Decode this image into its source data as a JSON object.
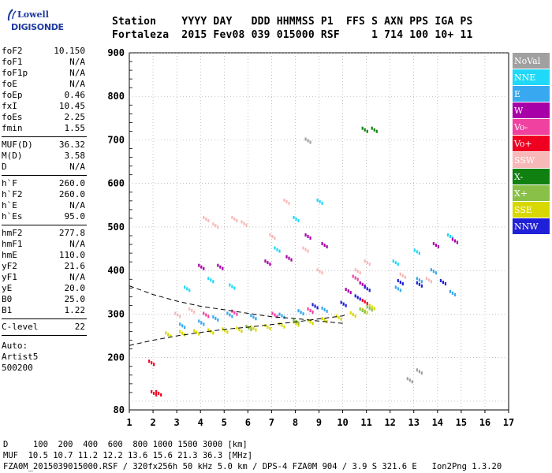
{
  "logo": {
    "line1": "Lowell",
    "line2": "DIGISONDE"
  },
  "header": {
    "line1": "Station    YYYY DAY   DDD HHMMSS P1  FFS S AXN PPS IGA PS",
    "line2": "Fortaleza  2015 Fev08 039 015000 RSF     1 714 100 10+ 11"
  },
  "params": [
    {
      "name": "foF2",
      "value": "10.150"
    },
    {
      "name": "foF1",
      "value": "N/A"
    },
    {
      "name": "foF1p",
      "value": "N/A"
    },
    {
      "name": "foE",
      "value": "N/A"
    },
    {
      "name": "foEp",
      "value": "0.46"
    },
    {
      "name": "fxI",
      "value": "10.45"
    },
    {
      "name": "foEs",
      "value": "2.25"
    },
    {
      "name": "fmin",
      "value": "1.55"
    },
    {
      "sep": true
    },
    {
      "name": "MUF(D)",
      "value": "36.32"
    },
    {
      "name": "M(D)",
      "value": "3.58"
    },
    {
      "name": "D",
      "value": "N/A"
    },
    {
      "sep": true
    },
    {
      "name": "h`F",
      "value": "260.0"
    },
    {
      "name": "h`F2",
      "value": "260.0"
    },
    {
      "name": "h`E",
      "value": "N/A"
    },
    {
      "name": "h`Es",
      "value": "95.0"
    },
    {
      "sep": true
    },
    {
      "name": "hmF2",
      "value": "277.8"
    },
    {
      "name": "hmF1",
      "value": "N/A"
    },
    {
      "name": "hmE",
      "value": "110.0"
    },
    {
      "name": "yF2",
      "value": "21.6"
    },
    {
      "name": "yF1",
      "value": "N/A"
    },
    {
      "name": "yE",
      "value": "20.0"
    },
    {
      "name": "B0",
      "value": "25.0"
    },
    {
      "name": "B1",
      "value": "1.22"
    },
    {
      "sep": true
    },
    {
      "name": "C-level",
      "value": "22"
    },
    {
      "sep": true
    }
  ],
  "auto": {
    "line1": "Auto:",
    "line2": "Artist5",
    "line3": "500200"
  },
  "legend": [
    {
      "label": "NoVal",
      "color": "#a0a0a0"
    },
    {
      "label": "NNE",
      "color": "#20d8f8"
    },
    {
      "label": "E",
      "color": "#38a8f0"
    },
    {
      "label": "W",
      "color": "#a800a8"
    },
    {
      "label": "Vo-",
      "color": "#f040a0"
    },
    {
      "label": "Vo+",
      "color": "#f00020"
    },
    {
      "label": "SSW",
      "color": "#f8b8b8"
    },
    {
      "label": "X-",
      "color": "#108010"
    },
    {
      "label": "X+",
      "color": "#88c048"
    },
    {
      "label": "SSE",
      "color": "#d8d800"
    },
    {
      "label": "NNW",
      "color": "#2020d8"
    }
  ],
  "bottom": {
    "line1": "D     100  200  400  600  800 1000 1500 3000 [km]",
    "line2": "MUF  10.5 10.7 11.2 12.2 13.6 15.6 21.3 36.3 [MHz]",
    "line3": "FZA0M_2015039015000.RSF / 320fx256h 50 kHz 5.0 km / DPS-4 FZA0M 904 / 3.9 S 321.6 E   Ion2Png 1.3.20"
  },
  "chart_data": {
    "type": "scatter",
    "title": "",
    "xlabel": "",
    "ylabel": "",
    "xlim": [
      1,
      17
    ],
    "ylim": [
      80,
      900
    ],
    "x_ticks": [
      1,
      2,
      3,
      4,
      5,
      6,
      7,
      8,
      9,
      10,
      11,
      12,
      13,
      14,
      15,
      16,
      17
    ],
    "y_ticks": [
      100,
      200,
      300,
      400,
      500,
      600,
      700,
      800,
      900
    ],
    "y_tick_labels_shown": [
      80,
      200,
      300,
      400,
      500,
      600,
      700,
      800,
      900
    ],
    "grid": true,
    "legend_position": "right",
    "series": [
      {
        "name": "SSE",
        "color": "#d8d800",
        "points": [
          [
            2.6,
            255
          ],
          [
            3.2,
            258
          ],
          [
            3.8,
            260
          ],
          [
            4.4,
            262
          ],
          [
            5.0,
            264
          ],
          [
            5.6,
            266
          ],
          [
            6.2,
            269
          ],
          [
            6.8,
            272
          ],
          [
            7.4,
            276
          ],
          [
            8.0,
            280
          ],
          [
            8.6,
            284
          ],
          [
            9.2,
            288
          ],
          [
            9.8,
            294
          ],
          [
            10.4,
            301
          ],
          [
            10.9,
            309
          ],
          [
            11.2,
            318
          ]
        ]
      },
      {
        "name": "E",
        "color": "#38a8f0",
        "points": [
          [
            3.2,
            275
          ],
          [
            4.0,
            282
          ],
          [
            4.6,
            292
          ],
          [
            5.2,
            300
          ],
          [
            6.2,
            295
          ],
          [
            7.4,
            298
          ],
          [
            8.2,
            306
          ],
          [
            9.2,
            312
          ],
          [
            12.3,
            360
          ],
          [
            13.2,
            380
          ],
          [
            13.8,
            400
          ],
          [
            14.6,
            350
          ]
        ]
      },
      {
        "name": "NNE",
        "color": "#20d8f8",
        "points": [
          [
            3.4,
            360
          ],
          [
            4.4,
            380
          ],
          [
            5.3,
            365
          ],
          [
            7.2,
            450
          ],
          [
            8.0,
            520
          ],
          [
            9.0,
            560
          ],
          [
            12.2,
            420
          ],
          [
            13.1,
            445
          ],
          [
            14.5,
            480
          ]
        ]
      },
      {
        "name": "SSW",
        "color": "#f8b8b8",
        "points": [
          [
            3.0,
            300
          ],
          [
            3.6,
            310
          ],
          [
            4.2,
            520
          ],
          [
            4.6,
            505
          ],
          [
            5.4,
            520
          ],
          [
            5.8,
            510
          ],
          [
            7.0,
            480
          ],
          [
            7.6,
            560
          ],
          [
            8.4,
            450
          ],
          [
            9.0,
            400
          ],
          [
            10.6,
            400
          ],
          [
            11.0,
            420
          ],
          [
            12.5,
            390
          ],
          [
            13.6,
            380
          ]
        ]
      },
      {
        "name": "W",
        "color": "#a800a8",
        "points": [
          [
            4.0,
            410
          ],
          [
            4.8,
            410
          ],
          [
            6.8,
            420
          ],
          [
            7.7,
            430
          ],
          [
            8.5,
            480
          ],
          [
            9.2,
            460
          ],
          [
            10.2,
            355
          ],
          [
            10.8,
            370
          ],
          [
            13.9,
            460
          ],
          [
            14.7,
            470
          ]
        ]
      },
      {
        "name": "NNW",
        "color": "#2020d8",
        "points": [
          [
            8.8,
            320
          ],
          [
            10.0,
            325
          ],
          [
            10.6,
            340
          ],
          [
            11.0,
            360
          ],
          [
            12.4,
            375
          ],
          [
            13.2,
            370
          ],
          [
            14.2,
            375
          ]
        ]
      },
      {
        "name": "X+",
        "color": "#88c048",
        "points": [
          [
            6.0,
            270
          ],
          [
            8.0,
            285
          ],
          [
            10.8,
            310
          ],
          [
            11.1,
            315
          ]
        ]
      },
      {
        "name": "Vo-",
        "color": "#f040a0",
        "points": [
          [
            4.2,
            300
          ],
          [
            5.4,
            305
          ],
          [
            7.1,
            300
          ],
          [
            8.6,
            310
          ],
          [
            10.5,
            385
          ]
        ]
      },
      {
        "name": "Vo+",
        "color": "#f00020",
        "points": [
          [
            2.0,
            120
          ],
          [
            2.2,
            120
          ],
          [
            1.9,
            190
          ],
          [
            10.9,
            330
          ]
        ]
      },
      {
        "name": "X-",
        "color": "#108010",
        "points": [
          [
            10.9,
            725
          ],
          [
            11.3,
            725
          ]
        ]
      },
      {
        "name": "NoVal",
        "color": "#a0a0a0",
        "points": [
          [
            12.8,
            150
          ],
          [
            13.2,
            170
          ],
          [
            8.5,
            700
          ]
        ]
      }
    ],
    "curves": [
      {
        "name": "",
        "style": "dashed",
        "points": [
          [
            1,
            365
          ],
          [
            2,
            345
          ],
          [
            3,
            330
          ],
          [
            4,
            318
          ],
          [
            5,
            310
          ],
          [
            6,
            302
          ],
          [
            7,
            294
          ],
          [
            8,
            290
          ],
          [
            9,
            284
          ],
          [
            10,
            279
          ]
        ]
      },
      {
        "name": "",
        "style": "dashed",
        "points": [
          [
            1,
            228
          ],
          [
            2,
            240
          ],
          [
            3,
            250
          ],
          [
            4,
            258
          ],
          [
            5,
            265
          ],
          [
            6,
            270
          ],
          [
            7,
            276
          ],
          [
            8,
            282
          ],
          [
            9,
            289
          ],
          [
            10,
            296
          ],
          [
            10.2,
            300
          ]
        ]
      }
    ]
  }
}
